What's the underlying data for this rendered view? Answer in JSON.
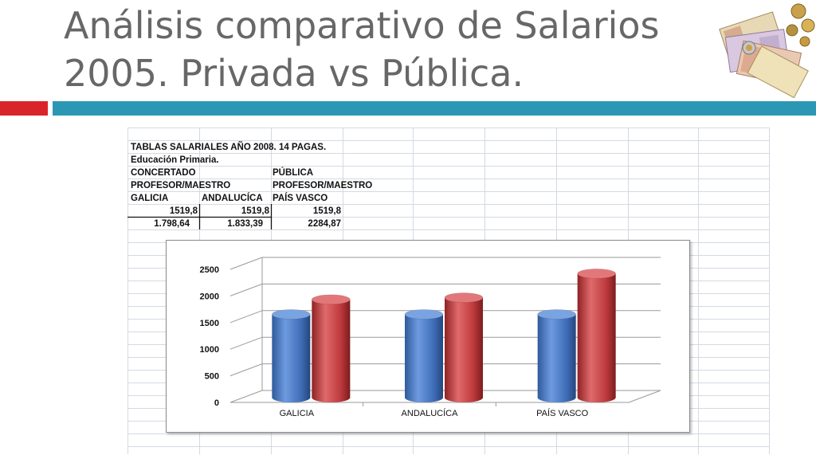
{
  "slide": {
    "title_line1": "Análisis comparativo de Salarios",
    "title_line2": "2005. Privada vs Pública."
  },
  "table": {
    "row1": "TABLAS SALARIALES AÑO 2008. 14 PAGAS.",
    "row2": "Educación Primaria.",
    "row3_a": "CONCERTADO",
    "row3_b": "PÚBLICA",
    "row4_a": "PROFESOR/MAESTRO",
    "row4_b": "PROFESOR/MAESTRO",
    "headers": [
      "GALICIA",
      "ANDALUCÍCA",
      "PAÍS VASCO"
    ],
    "values_row1": [
      "1519,8",
      "1519,8",
      "1519,8"
    ],
    "values_row2": [
      "1.798,64",
      "1.833,39",
      "2284,87"
    ]
  },
  "chart_data": {
    "type": "bar",
    "categories": [
      "GALICIA",
      "ANDALUCÍCA",
      "PAÍS VASCO"
    ],
    "series": [
      {
        "values": [
          1519.8,
          1519.8,
          1519.8
        ],
        "color": "#4a7fc4"
      },
      {
        "values": [
          1798.64,
          1833.39,
          2284.87
        ],
        "color": "#c0393b"
      }
    ],
    "ylim": [
      0,
      2500
    ],
    "yticks": [
      "0",
      "500",
      "1000",
      "1500",
      "2000",
      "2500"
    ],
    "grid": true,
    "style": "3d-cylinder"
  }
}
